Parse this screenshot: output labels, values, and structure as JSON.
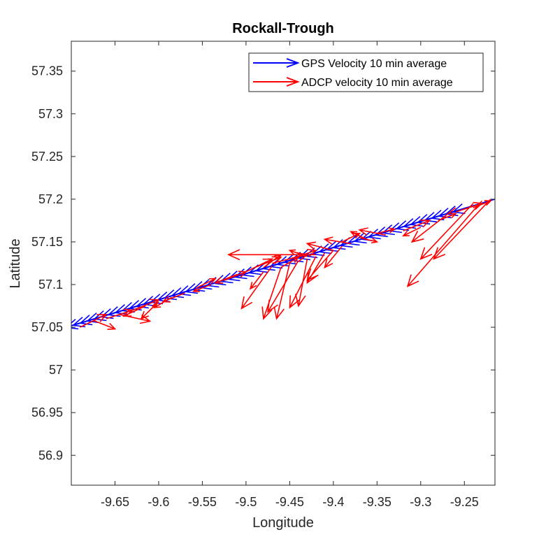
{
  "chart_data": {
    "type": "quiver",
    "title": "Rockall-Trough",
    "xlabel": "Longitude",
    "ylabel": "Latitude",
    "xlim": [
      -9.7,
      -9.215
    ],
    "ylim": [
      56.865,
      57.385
    ],
    "xticks": [
      -9.65,
      -9.6,
      -9.55,
      -9.5,
      -9.45,
      -9.4,
      -9.35,
      -9.3,
      -9.25
    ],
    "xtick_labels": [
      "-9.65",
      "-9.6",
      "-9.55",
      "-9.5",
      "-9.45",
      "-9.4",
      "-9.35",
      "-9.3",
      "-9.25"
    ],
    "yticks": [
      56.9,
      56.95,
      57.0,
      57.05,
      57.1,
      57.15,
      57.2,
      57.25,
      57.3,
      57.35
    ],
    "ytick_labels": [
      "56.9",
      "56.95",
      "57",
      "57.05",
      "57.1",
      "57.15",
      "57.2",
      "57.25",
      "57.3",
      "57.35"
    ],
    "legend_position": "top-right",
    "grid": false,
    "series": [
      {
        "name": "GPS Velocity 10 min average",
        "color": "#0000ff",
        "track_start": [
          -9.69,
          57.055
        ],
        "track_end": [
          -9.215,
          57.2
        ],
        "n_arrows": 60,
        "u": -0.048,
        "v": -0.015
      },
      {
        "name": "ADCP velocity 10 min average",
        "color": "#ff0000",
        "arrows": [
          {
            "x": -9.69,
            "y": 57.05,
            "u": 0.03,
            "v": 0.015
          },
          {
            "x": -9.675,
            "y": 57.058,
            "u": 0.025,
            "v": -0.01
          },
          {
            "x": -9.66,
            "y": 57.06,
            "u": 0.03,
            "v": 0.01
          },
          {
            "x": -9.645,
            "y": 57.065,
            "u": 0.035,
            "v": -0.008
          },
          {
            "x": -9.63,
            "y": 57.07,
            "u": 0.03,
            "v": 0.012
          },
          {
            "x": -9.615,
            "y": 57.075,
            "u": -0.025,
            "v": -0.012
          },
          {
            "x": -9.6,
            "y": 57.08,
            "u": -0.02,
            "v": -0.02
          },
          {
            "x": -9.585,
            "y": 57.085,
            "u": -0.02,
            "v": -0.012
          },
          {
            "x": -9.57,
            "y": 57.09,
            "u": -0.025,
            "v": -0.01
          },
          {
            "x": -9.555,
            "y": 57.097,
            "u": 0.02,
            "v": 0.01
          },
          {
            "x": -9.54,
            "y": 57.1,
            "u": -0.02,
            "v": -0.008
          },
          {
            "x": -9.525,
            "y": 57.105,
            "u": 0.025,
            "v": 0.01
          },
          {
            "x": -9.51,
            "y": 57.112,
            "u": -0.025,
            "v": -0.01
          },
          {
            "x": -9.5,
            "y": 57.115,
            "u": 0.03,
            "v": 0.015
          },
          {
            "x": -9.49,
            "y": 57.12,
            "u": 0.03,
            "v": 0.012
          },
          {
            "x": -9.48,
            "y": 57.12,
            "u": 0.02,
            "v": 0.015
          },
          {
            "x": -9.47,
            "y": 57.125,
            "u": 0.04,
            "v": 0.01
          },
          {
            "x": -9.45,
            "y": 57.13,
            "u": 0.03,
            "v": 0.01
          },
          {
            "x": -9.43,
            "y": 57.133,
            "u": -0.02,
            "v": 0.007
          },
          {
            "x": -9.42,
            "y": 57.135,
            "u": -0.1,
            "v": 0.0
          },
          {
            "x": -9.4,
            "y": 57.14,
            "u": -0.03,
            "v": 0.008
          },
          {
            "x": -9.38,
            "y": 57.148,
            "u": -0.03,
            "v": 0.005
          },
          {
            "x": -9.36,
            "y": 57.152,
            "u": -0.02,
            "v": 0.01
          },
          {
            "x": -9.34,
            "y": 57.158,
            "u": -0.03,
            "v": 0.006
          },
          {
            "x": -9.32,
            "y": 57.163,
            "u": 0.03,
            "v": 0.012
          },
          {
            "x": -9.3,
            "y": 57.167,
            "u": -0.02,
            "v": -0.01
          },
          {
            "x": -9.28,
            "y": 57.175,
            "u": 0.02,
            "v": 0.008
          },
          {
            "x": -9.26,
            "y": 57.185,
            "u": 0.03,
            "v": 0.01
          },
          {
            "x": -9.24,
            "y": 57.19,
            "u": 0.02,
            "v": 0.008
          },
          {
            "x": -9.46,
            "y": 57.12,
            "u": 0.02,
            "v": 0.012
          },
          {
            "x": -9.47,
            "y": 57.122,
            "u": -0.035,
            "v": -0.05
          },
          {
            "x": -9.46,
            "y": 57.12,
            "u": -0.02,
            "v": -0.06
          },
          {
            "x": -9.45,
            "y": 57.125,
            "u": -0.015,
            "v": -0.065
          },
          {
            "x": -9.44,
            "y": 57.128,
            "u": -0.035,
            "v": -0.06
          },
          {
            "x": -9.43,
            "y": 57.13,
            "u": -0.01,
            "v": -0.055
          },
          {
            "x": -9.42,
            "y": 57.133,
            "u": -0.03,
            "v": -0.06
          },
          {
            "x": -9.41,
            "y": 57.137,
            "u": -0.02,
            "v": -0.035
          },
          {
            "x": -9.4,
            "y": 57.14,
            "u": -0.03,
            "v": -0.035
          },
          {
            "x": -9.39,
            "y": 57.145,
            "u": -0.02,
            "v": -0.025
          },
          {
            "x": -9.48,
            "y": 57.115,
            "u": -0.015,
            "v": -0.02
          },
          {
            "x": -9.39,
            "y": 57.15,
            "u": 0.02,
            "v": 0.01
          },
          {
            "x": -9.37,
            "y": 57.155,
            "u": 0.02,
            "v": -0.005
          },
          {
            "x": -9.35,
            "y": 57.16,
            "u": 0.02,
            "v": 0.005
          },
          {
            "x": -9.23,
            "y": 57.198,
            "u": -0.085,
            "v": -0.1
          },
          {
            "x": -9.22,
            "y": 57.2,
            "u": -0.065,
            "v": -0.07
          },
          {
            "x": -9.24,
            "y": 57.195,
            "u": -0.06,
            "v": -0.065
          },
          {
            "x": -9.26,
            "y": 57.19,
            "u": -0.05,
            "v": -0.04
          }
        ]
      }
    ]
  }
}
